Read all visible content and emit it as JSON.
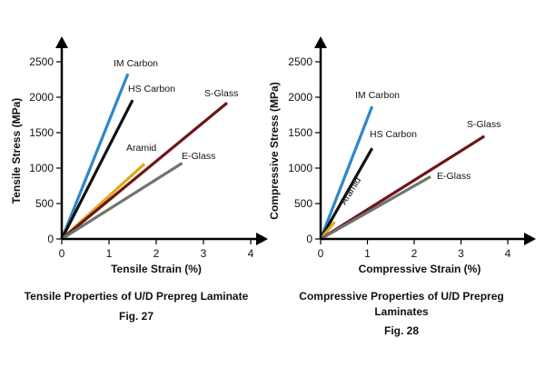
{
  "chart_data": [
    {
      "type": "line",
      "caption": "Tensile Properties of U/D Prepreg Laminate",
      "figure": "Fig. 27",
      "xlabel": "Tensile Strain (%)",
      "ylabel": "Tensile Stress (MPa)",
      "xlim": [
        0,
        4
      ],
      "ylim": [
        0,
        2500
      ],
      "xticks": [
        "0",
        "1",
        "2",
        "3",
        "4"
      ],
      "yticks": [
        "0",
        "500",
        "1000",
        "1500",
        "2000",
        "2500"
      ],
      "grid": false,
      "series": [
        {
          "name": "IM Carbon",
          "color": "#2f86c8",
          "x": [
            0,
            1.4
          ],
          "y": [
            0,
            2330
          ]
        },
        {
          "name": "HS Carbon",
          "color": "#111111",
          "x": [
            0,
            1.5
          ],
          "y": [
            0,
            1960
          ]
        },
        {
          "name": "Aramid",
          "color": "#e0a81e",
          "x": [
            0,
            1.75
          ],
          "y": [
            0,
            1060
          ]
        },
        {
          "name": "S-Glass",
          "color": "#6e1518",
          "x": [
            0,
            3.5
          ],
          "y": [
            0,
            1920
          ]
        },
        {
          "name": "E-Glass",
          "color": "#6f756f",
          "x": [
            0,
            2.55
          ],
          "y": [
            0,
            1070
          ]
        }
      ]
    },
    {
      "type": "line",
      "caption": "Compressive Properties of U/D Prepreg",
      "caption2": "Laminates",
      "figure": "Fig. 28",
      "xlabel": "Compressive Strain (%)",
      "ylabel": "Compressive Stress (MPa)",
      "xlim": [
        0,
        4
      ],
      "ylim": [
        0,
        2500
      ],
      "xticks": [
        "0",
        "1",
        "2",
        "3",
        "4"
      ],
      "yticks": [
        "0",
        "500",
        "1000",
        "1500",
        "2000",
        "2500"
      ],
      "grid": false,
      "series": [
        {
          "name": "IM Carbon",
          "color": "#2f86c8",
          "x": [
            0,
            1.1
          ],
          "y": [
            0,
            1870
          ]
        },
        {
          "name": "HS Carbon",
          "color": "#111111",
          "x": [
            0,
            1.1
          ],
          "y": [
            0,
            1280
          ]
        },
        {
          "name": "Aramid",
          "color": "#e0a81e",
          "x": [
            0,
            0.3
          ],
          "y": [
            0,
            240
          ]
        },
        {
          "name": "S-Glass",
          "color": "#6e1518",
          "x": [
            0,
            3.5
          ],
          "y": [
            0,
            1450
          ]
        },
        {
          "name": "E-Glass",
          "color": "#6f756f",
          "x": [
            0,
            2.35
          ],
          "y": [
            0,
            880
          ]
        }
      ]
    }
  ]
}
